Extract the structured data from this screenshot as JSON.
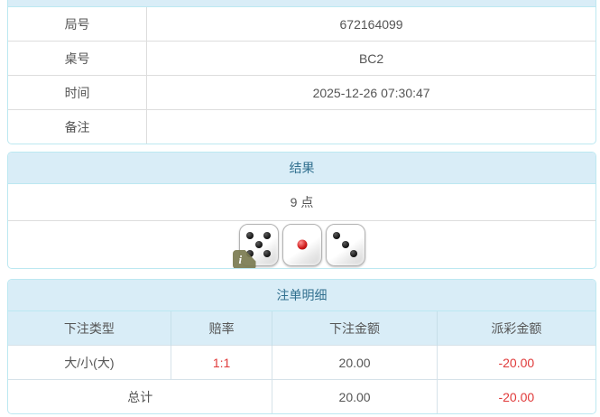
{
  "info_panel": {
    "header_label": "",
    "rows": [
      {
        "label": "局号",
        "value": "672164099"
      },
      {
        "label": "桌号",
        "value": "BC2"
      },
      {
        "label": "时间",
        "value": "2025-12-26 07:30:47"
      },
      {
        "label": "备注",
        "value": ""
      }
    ]
  },
  "result_panel": {
    "title": "结果",
    "points_text": "9 点",
    "dice": [
      {
        "value": 5,
        "color": "black"
      },
      {
        "value": 1,
        "color": "red"
      },
      {
        "value": 3,
        "color": "black"
      }
    ],
    "info_badge": "i"
  },
  "bets_panel": {
    "title": "注单明细",
    "columns": [
      "下注类型",
      "赔率",
      "下注金额",
      "派彩金额"
    ],
    "rows": [
      {
        "bet_type": "大/小(大)",
        "odds": "1:1",
        "bet_amount": "20.00",
        "payout": "-20.00"
      }
    ],
    "total": {
      "label": "总计",
      "bet_amount": "20.00",
      "payout": "-20.00"
    }
  },
  "colors": {
    "header_bg": "#d9edf7",
    "header_text": "#31708f",
    "panel_border": "#bce8f1",
    "negative_amount": "#e03a3a"
  }
}
